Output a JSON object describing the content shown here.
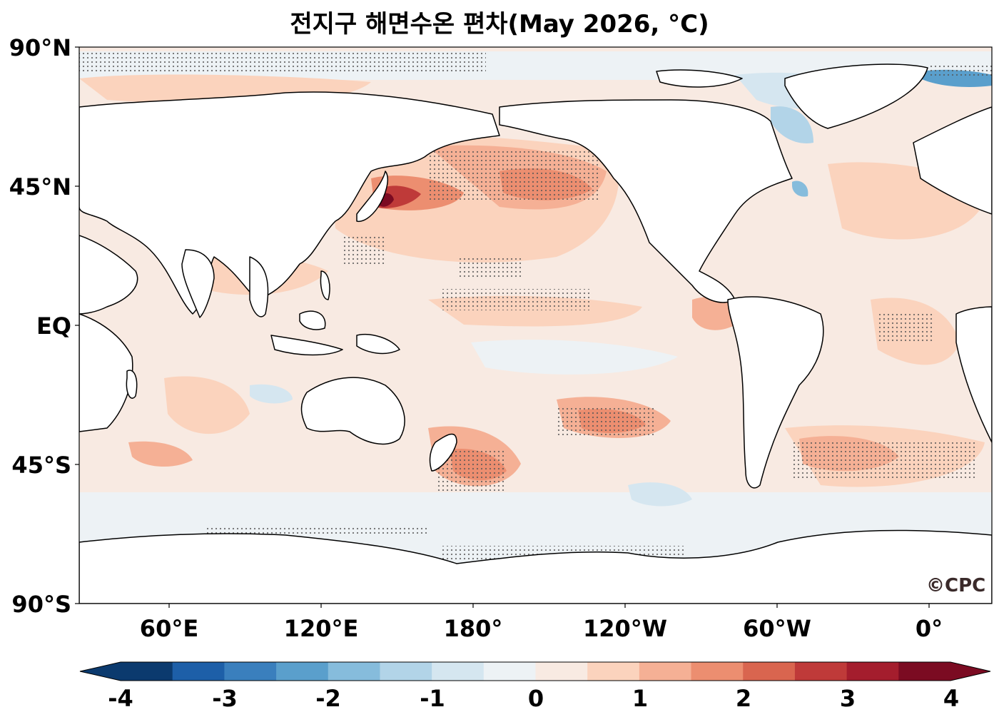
{
  "title": "전지구 해면수온 편차(May 2026, °C)",
  "y_axis": {
    "ticks": [
      "90°N",
      "45°N",
      "EQ",
      "45°S",
      "90°S"
    ]
  },
  "x_axis": {
    "ticks": [
      "60°E",
      "120°E",
      "180°",
      "120°W",
      "60°W",
      "0°"
    ]
  },
  "colorbar": {
    "ticks": [
      "-4",
      "-3",
      "-2",
      "-1",
      "0",
      "1",
      "2",
      "3",
      "4"
    ],
    "colors": [
      "#0b3a6e",
      "#1d5fa8",
      "#3a7fbd",
      "#5a9fcc",
      "#86bcdc",
      "#b2d4e8",
      "#d5e6f0",
      "#edf2f5",
      "#f8eae2",
      "#fbd3bd",
      "#f5b095",
      "#ec8e70",
      "#d9654f",
      "#bf3a39",
      "#a41d2d",
      "#7b0b22"
    ],
    "extend": "both"
  },
  "logo": "©CPC",
  "colors": {
    "near_zero": "#f8eae2",
    "light_pos": "#fbd3bd",
    "mid_pos": "#f5b095",
    "strong_pos": "#d9654f",
    "extreme_pos": "#a41d2d",
    "light_neg": "#d5e6f0",
    "mid_neg": "#86bcdc"
  }
}
